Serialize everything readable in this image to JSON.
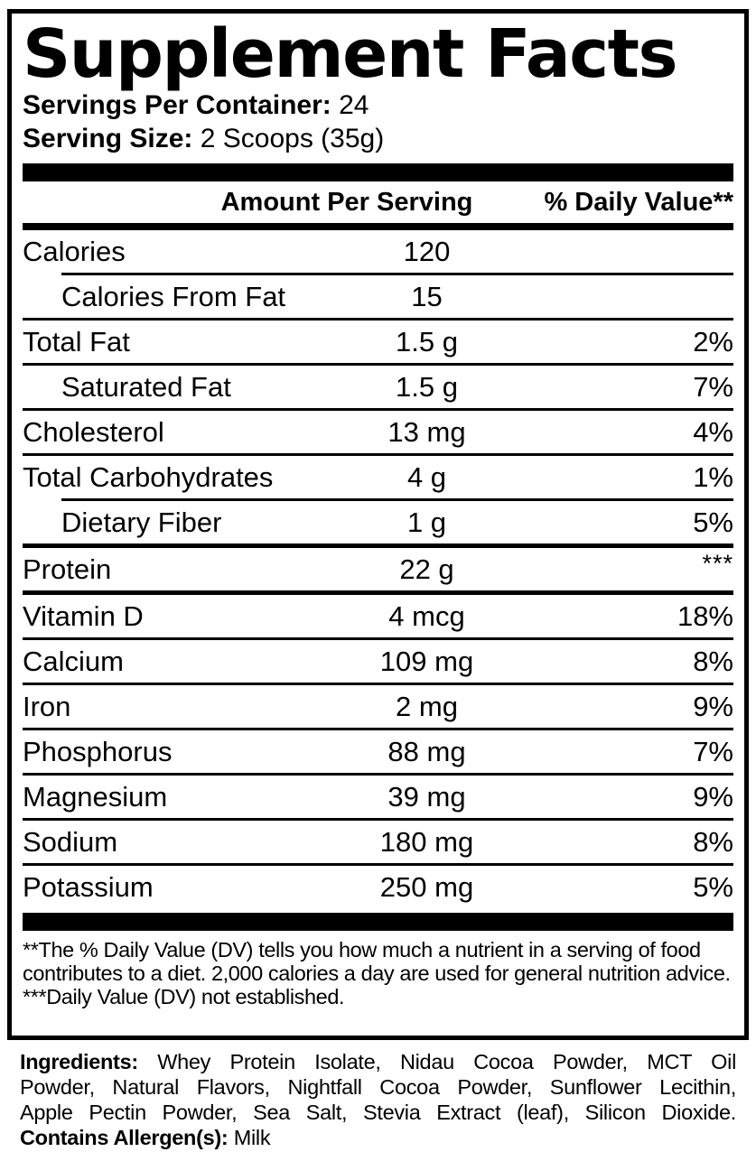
{
  "title": "Supplement Facts",
  "servings_per_container": {
    "label": "Servings Per Container:",
    "value": "24"
  },
  "serving_size": {
    "label": "Serving Size:",
    "value": "2 Scoops (35g)"
  },
  "table": {
    "header": {
      "amount": "Amount Per Serving",
      "daily_value": "% Daily Value**"
    },
    "rows": [
      {
        "name": "Calories",
        "amount": "120",
        "dv": "",
        "indent": false,
        "sep": "none"
      },
      {
        "name": "Calories From Fat",
        "amount": "15",
        "dv": "",
        "indent": true,
        "sep": "indent"
      },
      {
        "name": "Total Fat",
        "amount": "1.5 g",
        "dv": "2%",
        "indent": false,
        "sep": "thin"
      },
      {
        "name": "Saturated Fat",
        "amount": "1.5 g",
        "dv": "7%",
        "indent": true,
        "sep": "thin"
      },
      {
        "name": "Cholesterol",
        "amount": "13 mg",
        "dv": "4%",
        "indent": false,
        "sep": "thin"
      },
      {
        "name": "Total Carbohydrates",
        "amount": "4 g",
        "dv": "1%",
        "indent": false,
        "sep": "thin"
      },
      {
        "name": "Dietary Fiber",
        "amount": "1 g",
        "dv": "5%",
        "indent": true,
        "sep": "indent"
      },
      {
        "name": "Protein",
        "amount": "22 g",
        "dv": "***",
        "indent": false,
        "sep": "medium"
      },
      {
        "name": "Vitamin D",
        "amount": "4 mcg",
        "dv": "18%",
        "indent": false,
        "sep": "medium"
      },
      {
        "name": "Calcium",
        "amount": "109 mg",
        "dv": "8%",
        "indent": false,
        "sep": "thin"
      },
      {
        "name": "Iron",
        "amount": "2 mg",
        "dv": "9%",
        "indent": false,
        "sep": "thin"
      },
      {
        "name": "Phosphorus",
        "amount": "88 mg",
        "dv": "7%",
        "indent": false,
        "sep": "thin"
      },
      {
        "name": "Magnesium",
        "amount": "39 mg",
        "dv": "9%",
        "indent": false,
        "sep": "thin"
      },
      {
        "name": "Sodium",
        "amount": "180 mg",
        "dv": "8%",
        "indent": false,
        "sep": "thin"
      },
      {
        "name": "Potassium",
        "amount": "250 mg",
        "dv": "5%",
        "indent": false,
        "sep": "thin"
      }
    ]
  },
  "footnotes": [
    "**The % Daily Value (DV) tells you how much a nutrient in a serving of food contributes to a diet. 2,000 calories a day are used for general nutrition advice.",
    "***Daily Value (DV) not established."
  ],
  "ingredients": {
    "label": "Ingredients:",
    "lines": [
      "Whey Protein Isolate, Nidau Cocoa Powder, MCT Oil",
      "Powder, Natural Flavors, Nightfall Cocoa Powder, Sunflower Lecithin,",
      "Apple Pectin Powder, Sea Salt, Stevia Extract (leaf), Silicon Dioxide."
    ],
    "allergen_label": "Contains Allergen(s):",
    "allergen_value": "Milk"
  },
  "colors": {
    "ink": "#000000",
    "background": "#ffffff"
  }
}
